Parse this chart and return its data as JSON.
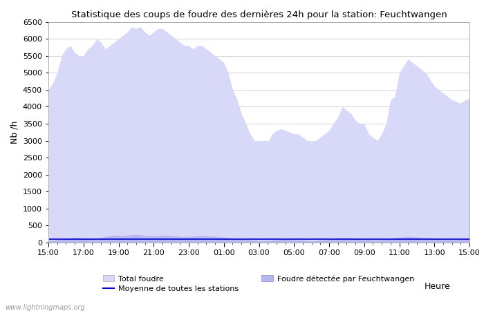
{
  "title": "Statistique des coups de foudre des dernières 24h pour la station: Feuchtwangen",
  "ylabel": "Nb /h",
  "xlabel": "Heure",
  "ylim": [
    0,
    6500
  ],
  "yticks": [
    0,
    500,
    1000,
    1500,
    2000,
    2500,
    3000,
    3500,
    4000,
    4500,
    5000,
    5500,
    6000,
    6500
  ],
  "xtick_labels": [
    "15:00",
    "17:00",
    "19:00",
    "21:00",
    "23:00",
    "01:00",
    "03:00",
    "05:00",
    "07:00",
    "09:00",
    "11:00",
    "13:00",
    "15:00"
  ],
  "background_color": "#ffffff",
  "fill_color_total": "#d8d8f8",
  "fill_color_local": "#b8b8f0",
  "line_color": "#0000cc",
  "watermark": "www.lightningmaps.org",
  "legend_total": "Total foudre",
  "legend_local": "Foudre détectée par Feuchtwangen",
  "legend_mean": "Moyenne de toutes les stations",
  "x_points": [
    0,
    1,
    2,
    3,
    4,
    5,
    6,
    7,
    8,
    9,
    10,
    11,
    12,
    13,
    14,
    15,
    16,
    17,
    18,
    19,
    20,
    21,
    22,
    23,
    24,
    25,
    26,
    27,
    28,
    29,
    30,
    31,
    32,
    33,
    34,
    35,
    36,
    37,
    38,
    39,
    40,
    41,
    42,
    43,
    44,
    45,
    46,
    47,
    48,
    49,
    50,
    51,
    52,
    53,
    54,
    55,
    56,
    57,
    58,
    59,
    60,
    61,
    62,
    63,
    64,
    65,
    66,
    67,
    68,
    69,
    70,
    71,
    72,
    73,
    74,
    75,
    76,
    77,
    78,
    79,
    80,
    81,
    82,
    83,
    84,
    85,
    86,
    87,
    88,
    89,
    90,
    91,
    92,
    93,
    94,
    95,
    96
  ],
  "total_foudre": [
    4500,
    4700,
    5000,
    5500,
    5700,
    5800,
    5600,
    5500,
    5500,
    5700,
    5800,
    6000,
    5900,
    5700,
    5800,
    5900,
    6000,
    6100,
    6200,
    6350,
    6300,
    6350,
    6200,
    6100,
    6200,
    6300,
    6300,
    6200,
    6100,
    6000,
    5900,
    5800,
    5800,
    5700,
    5800,
    5800,
    5700,
    5600,
    5500,
    5400,
    5300,
    5000,
    4500,
    4200,
    3800,
    3500,
    3200,
    3000,
    3000,
    3000,
    2950,
    3200,
    3300,
    3350,
    3300,
    3250,
    3200,
    3200,
    3100,
    3000,
    2950,
    3000,
    3100,
    3200,
    3300,
    3500,
    3700,
    4000,
    3900,
    3800,
    3600,
    3500,
    3500,
    3200,
    3100,
    3000,
    3200,
    3500,
    4200,
    4300,
    5000,
    5200,
    5400,
    5300,
    5200,
    5100,
    5000,
    4800,
    4600,
    4500,
    4400,
    4300,
    4200,
    4150,
    4100,
    4200,
    4250
  ],
  "local_foudre": [
    50,
    60,
    80,
    100,
    120,
    130,
    150,
    140,
    130,
    120,
    110,
    130,
    140,
    180,
    200,
    220,
    210,
    200,
    220,
    230,
    240,
    230,
    210,
    200,
    190,
    200,
    220,
    210,
    200,
    190,
    180,
    170,
    180,
    190,
    200,
    210,
    200,
    190,
    180,
    170,
    160,
    150,
    130,
    110,
    100,
    90,
    80,
    70,
    60,
    60,
    60,
    70,
    80,
    90,
    100,
    90,
    80,
    80,
    70,
    60,
    50,
    60,
    70,
    80,
    90,
    100,
    120,
    150,
    140,
    130,
    120,
    110,
    100,
    90,
    80,
    80,
    90,
    100,
    120,
    140,
    160,
    170,
    180,
    170,
    160,
    150,
    140,
    130,
    120,
    110,
    100,
    100,
    100,
    100,
    100,
    110,
    120
  ],
  "mean_line": [
    100,
    100,
    100,
    100,
    100,
    100,
    100,
    100,
    100,
    100,
    100,
    100,
    100,
    100,
    100,
    100,
    100,
    100,
    100,
    100,
    100,
    100,
    100,
    100,
    100,
    100,
    100,
    100,
    100,
    100,
    100,
    100,
    100,
    100,
    100,
    100,
    100,
    100,
    100,
    100,
    100,
    100,
    100,
    100,
    100,
    100,
    100,
    100,
    100,
    100,
    100,
    100,
    100,
    100,
    100,
    100,
    100,
    100,
    100,
    100,
    100,
    100,
    100,
    100,
    100,
    100,
    100,
    100,
    100,
    100,
    100,
    100,
    100,
    100,
    100,
    100,
    100,
    100,
    100,
    100,
    100,
    100,
    100,
    100,
    100,
    100,
    100,
    100,
    100,
    100,
    100,
    100,
    100,
    100,
    100,
    100,
    100
  ]
}
